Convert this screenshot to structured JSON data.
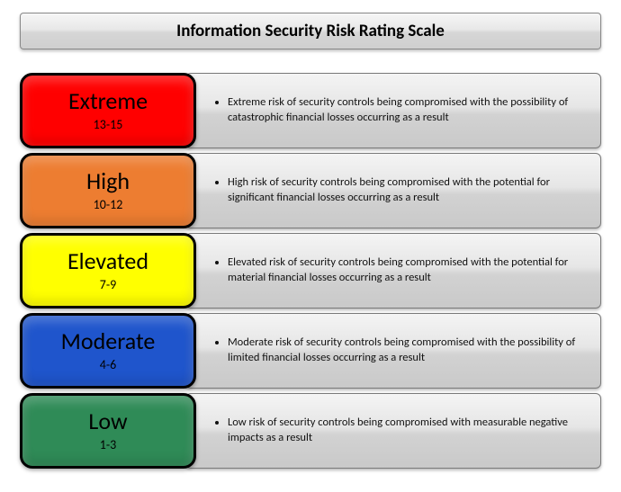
{
  "title": "Information Security Risk Rating Scale",
  "title_fontsize": 19,
  "title_fontweight": "bold",
  "background_color": "#ffffff",
  "desc_gradient": [
    "#f4f4f4",
    "#e6e6e6",
    "#d2d2d2",
    "#c9c9c9"
  ],
  "badge_border_color": "#000000",
  "badge_border_width": 3,
  "badge_border_radius": 14,
  "desc_fontsize": 12.5,
  "badge_label_fontsize": 26,
  "badge_range_fontsize": 14,
  "levels": [
    {
      "label": "Extreme",
      "range": "13-15",
      "color": "#ff0000",
      "description": "Extreme risk of security controls being compromised with the possibility of catastrophic financial losses occurring as a result"
    },
    {
      "label": "High",
      "range": "10-12",
      "color": "#ed7d31",
      "description": "High risk of security controls being compromised with the potential for significant financial losses occurring as a result"
    },
    {
      "label": "Elevated",
      "range": "7-9",
      "color": "#ffff00",
      "description": "Elevated risk of security controls being compromised with the potential for material financial losses occurring as a result"
    },
    {
      "label": "Moderate",
      "range": "4-6",
      "color": "#1f55cc",
      "description": "Moderate risk of security controls being compromised with the possibility of limited financial losses occurring as a result"
    },
    {
      "label": "Low",
      "range": "1-3",
      "color": "#2f8b57",
      "description": "Low risk of security controls being compromised with measurable negative impacts as a result"
    }
  ]
}
